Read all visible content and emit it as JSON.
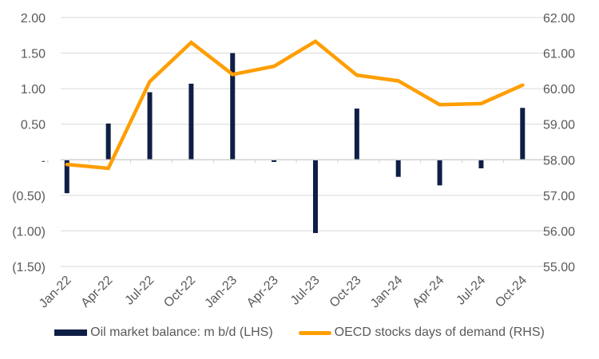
{
  "chart_data": {
    "type": "bar+line",
    "title": "",
    "categories": [
      "Jan-22",
      "Apr-22",
      "Jul-22",
      "Oct-22",
      "Jan-23",
      "Apr-23",
      "Jul-23",
      "Oct-23",
      "Jan-24",
      "Apr-24",
      "Jul-24",
      "Oct-24"
    ],
    "series": [
      {
        "name": "Oil market balance: m b/d (LHS)",
        "type": "bar",
        "axis": "left",
        "color": "#0f1e45",
        "values": [
          -0.47,
          0.51,
          0.95,
          1.07,
          1.5,
          -0.03,
          -1.03,
          0.72,
          -0.24,
          -0.36,
          -0.12,
          0.73
        ]
      },
      {
        "name": "OECD stocks days of demand (RHS)",
        "type": "line",
        "axis": "right",
        "color": "#ff9e00",
        "values": [
          57.87,
          57.76,
          60.2,
          61.3,
          60.4,
          60.63,
          61.33,
          60.38,
          60.22,
          59.55,
          59.58,
          60.1
        ]
      }
    ],
    "left_axis": {
      "ylim": [
        -1.5,
        2.0
      ],
      "ticks": [
        2.0,
        1.5,
        1.0,
        0.5,
        0,
        -0.5,
        -1.0,
        -1.5
      ],
      "tick_labels": [
        "2.00",
        "1.50",
        "1.00",
        "0.50",
        "-",
        "(0.50)",
        "(1.00)",
        "(1.50)"
      ]
    },
    "right_axis": {
      "ylim": [
        55,
        62
      ],
      "ticks": [
        62,
        61,
        60,
        59,
        58,
        57,
        56,
        55
      ],
      "tick_labels": [
        "62.00",
        "61.00",
        "60.00",
        "59.00",
        "58.00",
        "57.00",
        "56.00",
        "55.00"
      ]
    },
    "xlabel": "",
    "ylabel_left": "",
    "ylabel_right": "",
    "grid": true,
    "legend_position": "bottom"
  }
}
